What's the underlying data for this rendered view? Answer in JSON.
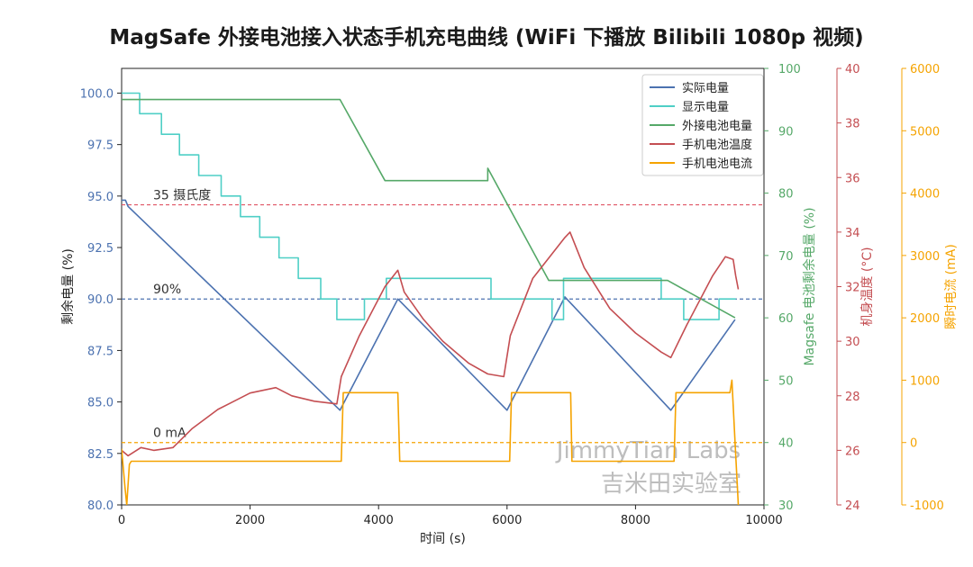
{
  "chart_data": {
    "type": "line",
    "title": "MagSafe 外接电池接入状态手机充电曲线 (WiFi 下播放 Bilibili 1080p 视频)",
    "xlabel": "时间 (s)",
    "xlim": [
      0,
      10000
    ],
    "xticks": [
      0,
      2000,
      4000,
      6000,
      8000,
      10000
    ],
    "axes": [
      {
        "id": "left",
        "label": "剩余电量 (%)",
        "lim": [
          80,
          101.2
        ],
        "ticks": [
          80.0,
          82.5,
          85.0,
          87.5,
          90.0,
          92.5,
          95.0,
          97.5,
          100.0
        ],
        "tick_labels": [
          "80.0",
          "82.5",
          "85.0",
          "87.5",
          "90.0",
          "92.5",
          "95.0",
          "97.5",
          "100.0"
        ],
        "color": "#4c72b0"
      },
      {
        "id": "magsafe",
        "label": "Magsafe 电池剩余电量 (%)",
        "lim": [
          30,
          100
        ],
        "ticks": [
          30,
          40,
          50,
          60,
          70,
          80,
          90,
          100
        ],
        "color": "#55a868"
      },
      {
        "id": "temp",
        "label": "机身温度 (°C)",
        "lim": [
          24,
          40
        ],
        "ticks": [
          24,
          26,
          28,
          30,
          32,
          34,
          36,
          38,
          40
        ],
        "color": "#c44e52"
      },
      {
        "id": "current",
        "label": "瞬时电流 (mA)",
        "lim": [
          -1000,
          6000
        ],
        "ticks": [
          -1000,
          0,
          1000,
          2000,
          3000,
          4000,
          5000,
          6000
        ],
        "color": "#f5a300"
      }
    ],
    "reference_lines": [
      {
        "label": "35 摄氏度",
        "axis": "temp",
        "value": 35,
        "color": "#e05565"
      },
      {
        "label": "90%",
        "axis": "left",
        "value": 90,
        "color": "#4c72b0"
      },
      {
        "label": "0 mA",
        "axis": "current",
        "value": 0,
        "color": "#f5a300"
      }
    ],
    "legend": {
      "position": "top-right"
    },
    "grid": false,
    "watermark": [
      "JimmyTian Labs",
      "吉米田实验室"
    ],
    "series": [
      {
        "name": "实际电量",
        "axis": "left",
        "color": "#4c72b0",
        "x": [
          0,
          60,
          100,
          3400,
          4300,
          6000,
          6900,
          8550,
          9550
        ],
        "y": [
          94.8,
          94.8,
          94.5,
          84.6,
          90.0,
          84.6,
          90.1,
          84.6,
          89.0
        ]
      },
      {
        "name": "显示电量",
        "axis": "left",
        "color": "#4fcfc6",
        "step": true,
        "x": [
          0,
          280,
          620,
          900,
          1200,
          1550,
          1850,
          2150,
          2450,
          2750,
          3100,
          3350,
          3780,
          4120,
          5750,
          6700,
          6880,
          8400,
          8750,
          9300,
          9560
        ],
        "y": [
          100,
          99,
          98,
          97,
          96,
          95,
          94,
          93,
          92,
          91,
          90,
          89,
          90,
          91,
          90,
          89,
          91,
          90,
          89,
          90,
          90
        ]
      },
      {
        "name": "外接电池电量",
        "axis": "magsafe",
        "color": "#55a868",
        "x": [
          0,
          3400,
          4100,
          5700,
          5700,
          6650,
          8500,
          9550
        ],
        "y": [
          95,
          95,
          82,
          82,
          84,
          66,
          66,
          60
        ]
      },
      {
        "name": "手机电池温度",
        "axis": "temp",
        "color": "#c44e52",
        "x": [
          0,
          100,
          300,
          500,
          800,
          1100,
          1500,
          2000,
          2400,
          2650,
          3000,
          3350,
          3420,
          3700,
          4100,
          4300,
          4400,
          4700,
          5000,
          5400,
          5700,
          5950,
          6050,
          6400,
          6900,
          6980,
          7200,
          7600,
          8000,
          8400,
          8550,
          8800,
          9200,
          9400,
          9520,
          9560,
          9600
        ],
        "y": [
          26.0,
          25.8,
          26.1,
          26.0,
          26.1,
          26.8,
          27.5,
          28.1,
          28.3,
          28.0,
          27.8,
          27.7,
          28.7,
          30.2,
          32.0,
          32.6,
          31.8,
          30.8,
          30.0,
          29.2,
          28.8,
          28.7,
          30.2,
          32.3,
          33.8,
          34.0,
          32.7,
          31.2,
          30.3,
          29.6,
          29.4,
          30.6,
          32.4,
          33.1,
          33.0,
          32.4,
          31.9
        ]
      },
      {
        "name": "手机电池电流",
        "axis": "current",
        "color": "#f5a300",
        "x": [
          0,
          50,
          80,
          120,
          150,
          3420,
          3450,
          4300,
          4330,
          6040,
          6070,
          6990,
          7010,
          8600,
          8630,
          9470,
          9500,
          9550,
          9600
        ],
        "y": [
          -100,
          -700,
          -1000,
          -350,
          -300,
          -300,
          800,
          800,
          -300,
          -300,
          800,
          800,
          -300,
          -300,
          800,
          800,
          1000,
          0,
          -1000
        ]
      }
    ]
  }
}
